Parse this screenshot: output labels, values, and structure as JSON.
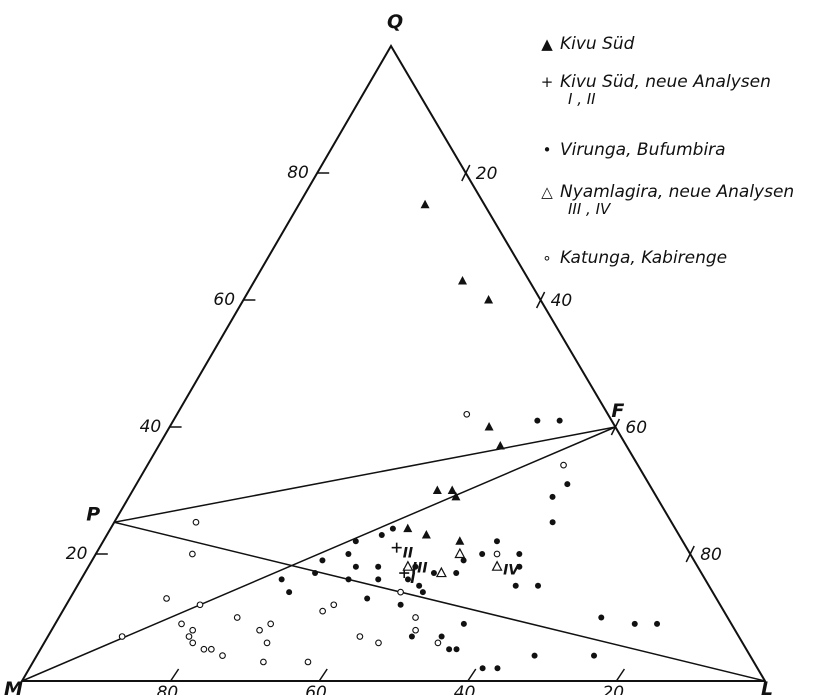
{
  "vertices": {
    "top": "Q",
    "left": "M",
    "right": "L",
    "p_point": "P",
    "f_point": "F"
  },
  "ticks": {
    "left_side": [
      "80",
      "60",
      "40",
      "20"
    ],
    "right_side": [
      "20",
      "40",
      "60",
      "80"
    ],
    "bottom_side": [
      "80",
      "60",
      "40",
      "20"
    ]
  },
  "legend": [
    {
      "symbol": "▲",
      "label": "Kivu Süd",
      "sub": ""
    },
    {
      "symbol": "+",
      "label": "Kivu Süd, neue Analysen",
      "sub": "I ,  II"
    },
    {
      "symbol": "•",
      "label": "Virunga, Bufumbira",
      "sub": ""
    },
    {
      "symbol": "△",
      "label": "Nyamlagira, neue Analysen",
      "sub": "III ,   IV"
    },
    {
      "symbol": "∘",
      "label": "Katunga, Kabirenge",
      "sub": ""
    }
  ],
  "point_labels": {
    "I": "I",
    "II": "II",
    "III": "III",
    "IV": "IV"
  },
  "chart_data": {
    "type": "scatter",
    "components": [
      "Q",
      "L",
      "M"
    ],
    "reference_points": {
      "P": {
        "Q": 25,
        "L": 0,
        "M": 75
      },
      "F": {
        "Q": 40,
        "L": 60,
        "M": 0
      }
    },
    "series": [
      {
        "name": "Kivu Süd",
        "marker": "filled-triangle",
        "points": [
          [
            75,
            17
          ],
          [
            63,
            28
          ],
          [
            60,
            33
          ],
          [
            40,
            43
          ],
          [
            37,
            46
          ],
          [
            30,
            41
          ],
          [
            30,
            43
          ],
          [
            29,
            44
          ],
          [
            24,
            40
          ],
          [
            23,
            43
          ],
          [
            22,
            48
          ]
        ]
      },
      {
        "name": "Kivu Süd, neue Analysen",
        "marker": "plus",
        "points": [
          [
            21,
            40
          ],
          [
            17,
            43
          ]
        ]
      },
      {
        "name": "Virunga, Bufumbira",
        "marker": "filled-circle",
        "points": [
          [
            41,
            49
          ],
          [
            41,
            52
          ],
          [
            31,
            58
          ],
          [
            29,
            57
          ],
          [
            25,
            59
          ],
          [
            22,
            53
          ],
          [
            20,
            57
          ],
          [
            18,
            58
          ],
          [
            20,
            52
          ],
          [
            19,
            50
          ],
          [
            17,
            50
          ],
          [
            17,
            47
          ],
          [
            16,
            44
          ],
          [
            15,
            59
          ],
          [
            15,
            62
          ],
          [
            16,
            27
          ],
          [
            14,
            47
          ],
          [
            13,
            40
          ],
          [
            10,
            73
          ],
          [
            9,
            78
          ],
          [
            9,
            81
          ],
          [
            9,
            55
          ],
          [
            7,
            53
          ],
          [
            7,
            49
          ],
          [
            5,
            56
          ],
          [
            5,
            55
          ],
          [
            2,
            61
          ],
          [
            2,
            63
          ],
          [
            18,
            36
          ],
          [
            18,
            39
          ],
          [
            15,
            46
          ],
          [
            12,
            45
          ],
          [
            20,
            34
          ],
          [
            22,
            34
          ],
          [
            23,
            37
          ],
          [
            24,
            38
          ],
          [
            18,
            44
          ],
          [
            16,
            40
          ],
          [
            19,
            31
          ],
          [
            17,
            31
          ],
          [
            16,
            36
          ],
          [
            14,
            29
          ],
          [
            4,
            67
          ],
          [
            4,
            75
          ]
        ]
      },
      {
        "name": "Nyamlagira, neue Analysen",
        "marker": "open-triangle",
        "points": [
          [
            20,
            49
          ],
          [
            18,
            43
          ],
          [
            17,
            48
          ],
          [
            18,
            55
          ]
        ]
      },
      {
        "name": "Katunga, Kabirenge",
        "marker": "open-circle",
        "points": [
          [
            42,
            39
          ],
          [
            34,
            56
          ],
          [
            25,
            11
          ],
          [
            20,
            13
          ],
          [
            13,
            13
          ],
          [
            12,
            18
          ],
          [
            10,
            24
          ],
          [
            12,
            36
          ],
          [
            11,
            35
          ],
          [
            9,
            17
          ],
          [
            8,
            19
          ],
          [
            7,
            10
          ],
          [
            7,
            19
          ],
          [
            6,
            20
          ],
          [
            5,
            22
          ],
          [
            5,
            23
          ],
          [
            4,
            25
          ],
          [
            3,
            31
          ],
          [
            9,
            29
          ],
          [
            8,
            28
          ],
          [
            6,
            30
          ],
          [
            7,
            42
          ],
          [
            6,
            45
          ],
          [
            3,
            37
          ],
          [
            14,
            44
          ],
          [
            20,
            54
          ],
          [
            10,
            48
          ],
          [
            8,
            49
          ],
          [
            6,
            53
          ]
        ]
      }
    ]
  }
}
